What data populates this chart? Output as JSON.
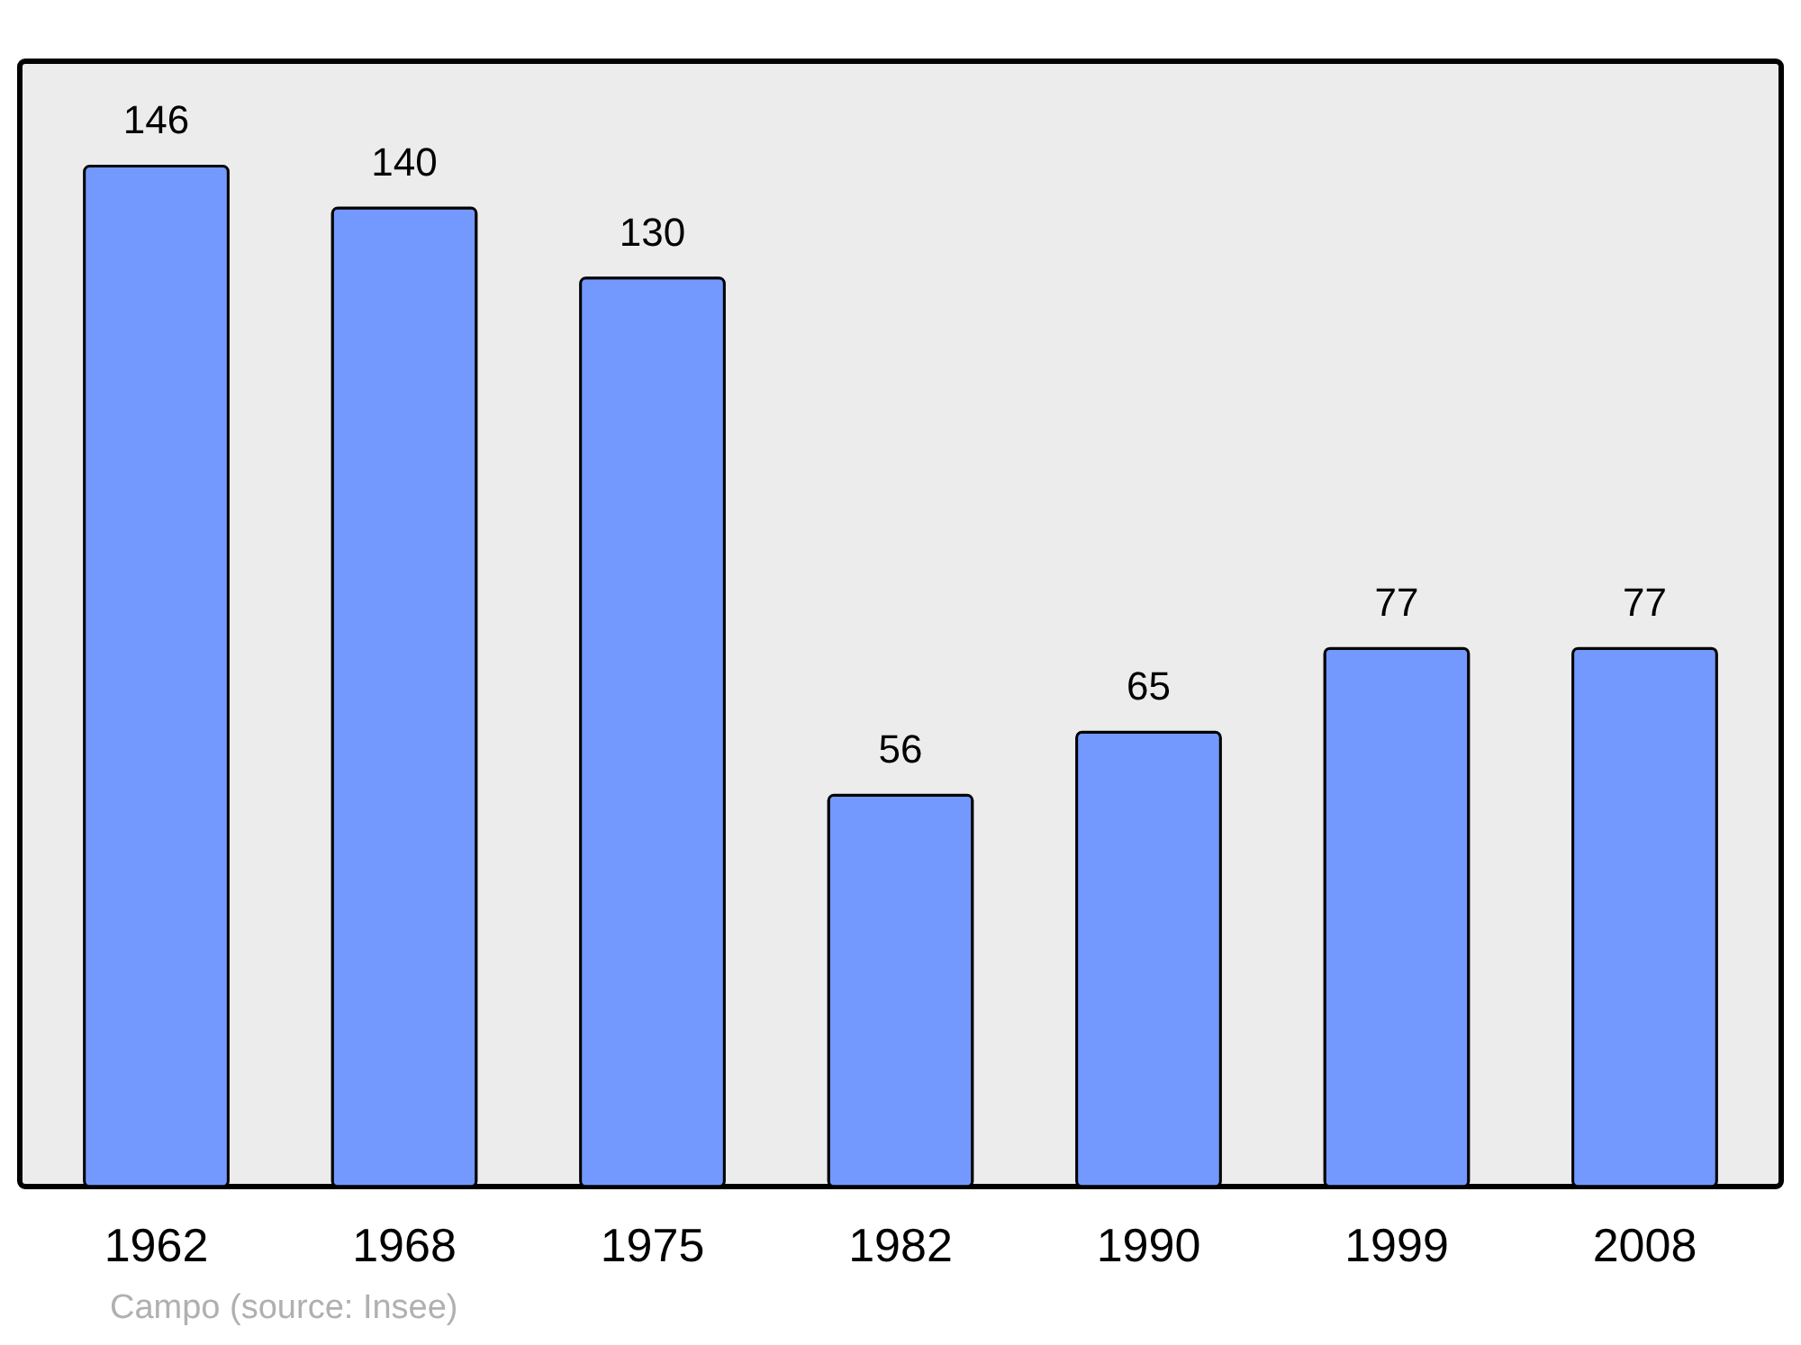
{
  "chart_data": {
    "type": "bar",
    "categories": [
      "1962",
      "1968",
      "1975",
      "1982",
      "1990",
      "1999",
      "2008"
    ],
    "values": [
      146,
      140,
      130,
      56,
      65,
      77,
      77
    ],
    "color": "#7399ff",
    "data_labels": true,
    "ylim": [
      0,
      161
    ],
    "annotations": [
      "Campo    (source: Insee)"
    ]
  }
}
